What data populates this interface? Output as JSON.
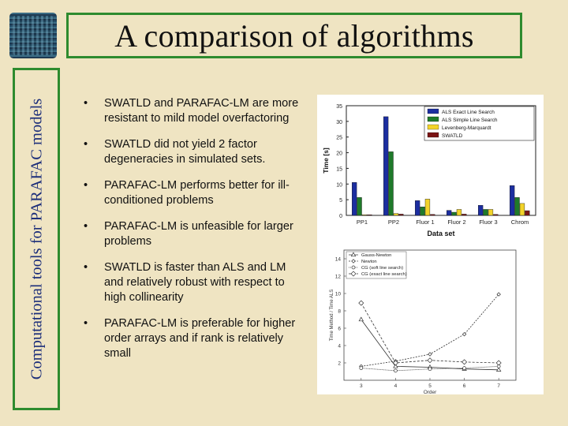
{
  "header": {
    "title": "A comparison of algorithms"
  },
  "sidebar": {
    "vertical_title": "Computational tools for PARAFAC models"
  },
  "bullets": [
    "SWATLD and PARAFAC-LM are more resistant to mild model overfactoring",
    "SWATLD did not yield 2 factor degeneracies in simulated sets.",
    "PARAFAC-LM performs better for ill-conditioned problems",
    "PARAFAC-LM is unfeasible for larger problems",
    "SWATLD is faster than ALS and LM and relatively robust with respect to high collinearity",
    "PARAFAC-LM is preferable for higher order arrays and if rank is relatively small"
  ],
  "bullet_symbol": "•",
  "chart_data": [
    {
      "type": "bar",
      "xlabel": "Data set",
      "ylabel": "Time [s]",
      "ylim": [
        0,
        35
      ],
      "yticks": [
        0,
        5,
        10,
        15,
        20,
        25,
        30,
        35
      ],
      "categories": [
        "PP1",
        "PP2",
        "Fluor 1",
        "Fluor 2",
        "Fluor 3",
        "Chrom"
      ],
      "legend_position": "top-right",
      "series": [
        {
          "name": "ALS Exact Line Search",
          "color": "#1c2ea0",
          "values": [
            10.5,
            31.5,
            4.7,
            1.6,
            3.2,
            9.5
          ]
        },
        {
          "name": "ALS Simple Line Search",
          "color": "#1f7a2a",
          "values": [
            5.7,
            20.3,
            2.7,
            1.0,
            1.9,
            5.7
          ]
        },
        {
          "name": "Levenberg-Marquardt",
          "color": "#f2d32a",
          "values": [
            0.2,
            0.6,
            5.2,
            1.9,
            1.9,
            3.8
          ]
        },
        {
          "name": "SWATLD",
          "color": "#7a1414",
          "values": [
            0.2,
            0.4,
            0.3,
            0.4,
            0.3,
            1.5
          ]
        }
      ]
    },
    {
      "type": "line",
      "xlabel": "Order",
      "ylabel": "Time Method / Time ALS",
      "x": [
        3,
        4,
        5,
        6,
        7
      ],
      "ylim": [
        0,
        15
      ],
      "yticks": [
        2,
        4,
        6,
        8,
        10,
        12,
        14
      ],
      "xticks": [
        3,
        4,
        5,
        6,
        7
      ],
      "legend_position": "top-left",
      "series": [
        {
          "name": "Gauss-Newton",
          "marker": "triangle",
          "values": [
            7.0,
            1.6,
            1.5,
            1.3,
            1.2
          ]
        },
        {
          "name": "Newton",
          "marker": "diamond-small",
          "values": [
            1.6,
            2.2,
            3.0,
            5.3,
            9.9
          ]
        },
        {
          "name": "CG (soft line search)",
          "marker": "circle",
          "values": [
            1.4,
            1.1,
            1.3,
            1.4,
            1.6
          ]
        },
        {
          "name": "CG (exact line search)",
          "marker": "diamond",
          "values": [
            8.9,
            2.0,
            2.3,
            2.1,
            2.0
          ]
        }
      ]
    }
  ]
}
